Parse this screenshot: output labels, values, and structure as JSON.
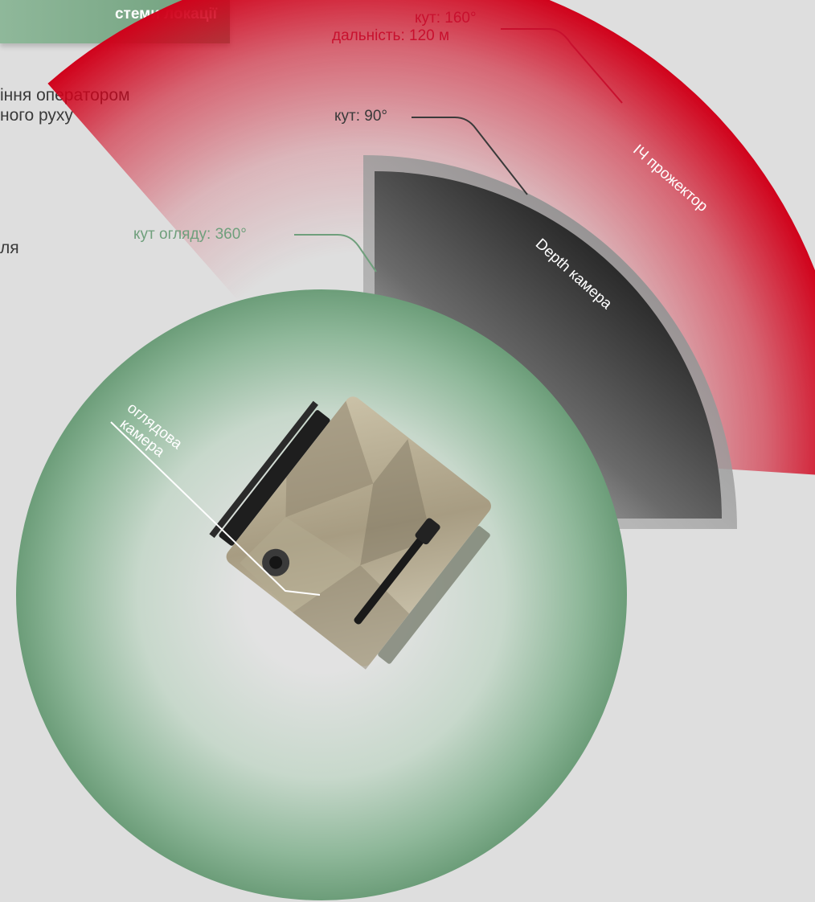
{
  "header": {
    "title": "стеми локації"
  },
  "body_text": {
    "line1": "іння оператором",
    "line2": "ного руху",
    "line3": "ля"
  },
  "ir_projector": {
    "angle_label": "кут: 160°",
    "range_label": "дальність: 120 м",
    "name": "ІЧ прожектор",
    "color": "#d0021b"
  },
  "depth_camera": {
    "angle_label": "кут: 90°",
    "name": "Depth камера",
    "color": "#3a3a3a"
  },
  "overview_camera": {
    "angle_label": "кут огляду: 360°",
    "name_line1": "оглядова",
    "name_line2": "камера",
    "color": "#6f9f7c"
  },
  "robot": {
    "icon": "robot-topview-icon"
  }
}
